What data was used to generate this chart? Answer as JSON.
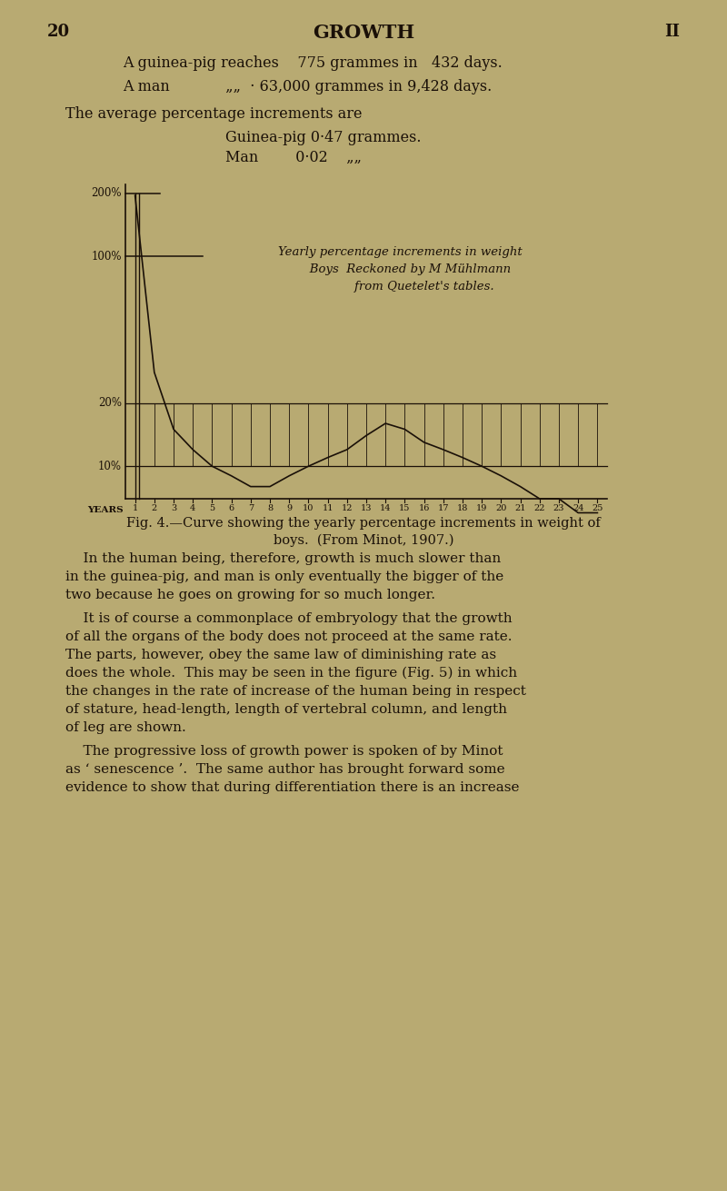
{
  "page_number_left": "20",
  "page_number_right": "II",
  "page_title": "GROWTH",
  "header_line1": "A guinea-pig reaches    775 grammes in   432 days.",
  "header_line2": "A man            „„  · 63,000 grammes in 9,428 days.",
  "avg_text": "The average percentage increments are",
  "avg_line1": "Guinea-pig 0·47 grammes.",
  "avg_line2": "Man        0·02    „„",
  "annotation_line1": "Yearly percentage increments in weight",
  "annotation_line2": "   Boys  Reckoned by M Mühlmann",
  "annotation_line3": "        from Quetelet's tables.",
  "fig_caption_line1": "Fig. 4.—Curve showing the yearly percentage increments in weight of",
  "fig_caption_line2": "boys.  (From Minot, 1907.)",
  "body_para1_lines": [
    "    In the human being, therefore, growth is much slower than",
    "in the guinea-pig, and man is only eventually the bigger of the",
    "two because he goes on growing for so much longer."
  ],
  "body_para2_lines": [
    "    It is of course a commonplace of embryology that the growth",
    "of all the organs of the body does not proceed at the same rate.",
    "The parts, however, obey the same law of diminishing rate as",
    "does the whole.  This may be seen in the figure (Fig. 5) in which",
    "the changes in the rate of increase of the human being in respect",
    "of stature, head-length, length of vertebral column, and length",
    "of leg are shown."
  ],
  "body_para3_lines": [
    "    The progressive loss of growth power is spoken of by Minot",
    "as ‘ senescence ’.  The same author has brought forward some",
    "evidence to show that during differentiation there is an increase"
  ],
  "background_color": "#b8aa72",
  "text_color": "#1a1008",
  "chart_line_color": "#1a1008",
  "years": [
    1,
    2,
    3,
    4,
    5,
    6,
    7,
    8,
    9,
    10,
    11,
    12,
    13,
    14,
    15,
    16,
    17,
    18,
    19,
    20,
    21,
    22,
    23,
    24,
    25
  ],
  "values": [
    195,
    28,
    15,
    12,
    10,
    9,
    8,
    8,
    9,
    10,
    11,
    12,
    14,
    16,
    15,
    13,
    12,
    11,
    10,
    9,
    8,
    7,
    7,
    6,
    6
  ]
}
